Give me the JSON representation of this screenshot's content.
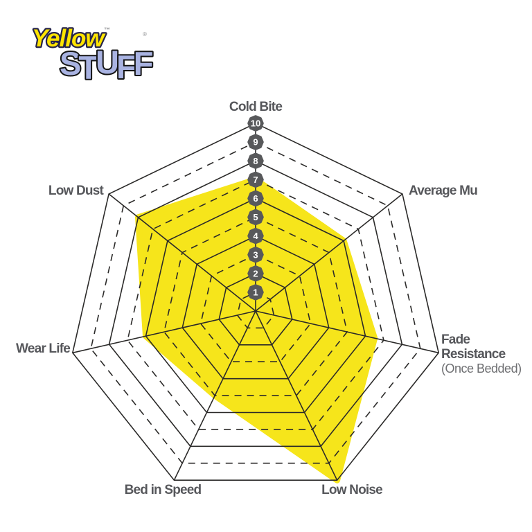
{
  "page": {
    "background": "#FFFFFF"
  },
  "logo": {
    "word1": "Yellow",
    "word1_mark": "™",
    "word2": "STUFF",
    "word2_mark": "®",
    "word1_color": "#FFE400",
    "word1_outline": "#26254B",
    "word2_color": "#A9B3E2",
    "word2_outline": "#141414",
    "mark_color": "#8A8B8E"
  },
  "chart_data": {
    "type": "radar",
    "title": "",
    "categories": [
      "Cold Bite",
      "Average Mu",
      "Fade Resistance",
      "Low Noise",
      "Bed in Speed",
      "Wear Life",
      "Low Dust"
    ],
    "values": [
      7,
      6,
      6.5,
      10,
      5,
      6,
      8
    ],
    "sublabels": {
      "Fade Resistance": "(Once Bedded)"
    },
    "scale_ticks": [
      1,
      2,
      3,
      4,
      5,
      6,
      7,
      8,
      9,
      10
    ],
    "rmin": 0,
    "rmax": 10,
    "grid": {
      "rings": 10,
      "solid_rings": "even",
      "dashed_rings": "odd",
      "spokes": true
    },
    "legend": "none",
    "colors": {
      "series_fill": "#F6E51B",
      "grid_line": "#2B2A29",
      "tick_badge": "#58595B",
      "tick_text": "#FFFFFF",
      "axis_label": "#56575B",
      "axis_sublabel": "#6D6E71"
    }
  }
}
